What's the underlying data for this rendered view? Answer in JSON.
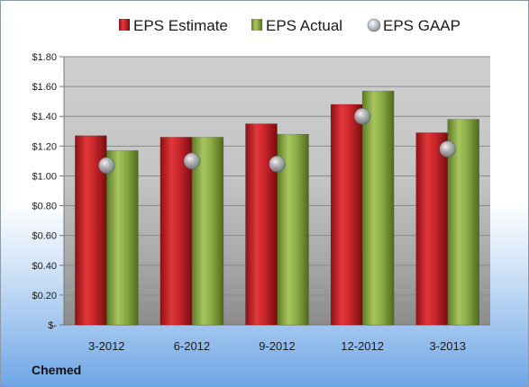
{
  "company": "Chemed",
  "chart_data": {
    "type": "bar",
    "categories": [
      "3-2012",
      "6-2012",
      "9-2012",
      "12-2012",
      "3-2013"
    ],
    "series": [
      {
        "name": "EPS Estimate",
        "kind": "bar",
        "color": "#c8262b",
        "values": [
          1.27,
          1.26,
          1.35,
          1.48,
          1.29
        ]
      },
      {
        "name": "EPS Actual",
        "kind": "bar",
        "color": "#8fae46",
        "values": [
          1.17,
          1.26,
          1.28,
          1.57,
          1.38
        ]
      },
      {
        "name": "EPS GAAP",
        "kind": "marker",
        "color": "#9aa4ae",
        "values": [
          1.07,
          1.1,
          1.08,
          1.4,
          1.18
        ]
      }
    ],
    "ylim": [
      0,
      1.8
    ],
    "yticks": [
      0,
      0.2,
      0.4,
      0.6,
      0.8,
      1.0,
      1.2,
      1.4,
      1.6,
      1.8
    ],
    "ytick_labels": [
      "$-",
      "$0.20",
      "$0.40",
      "$0.60",
      "$0.80",
      "$1.00",
      "$1.20",
      "$1.40",
      "$1.60",
      "$1.80"
    ],
    "grid": true,
    "legend": "top"
  }
}
